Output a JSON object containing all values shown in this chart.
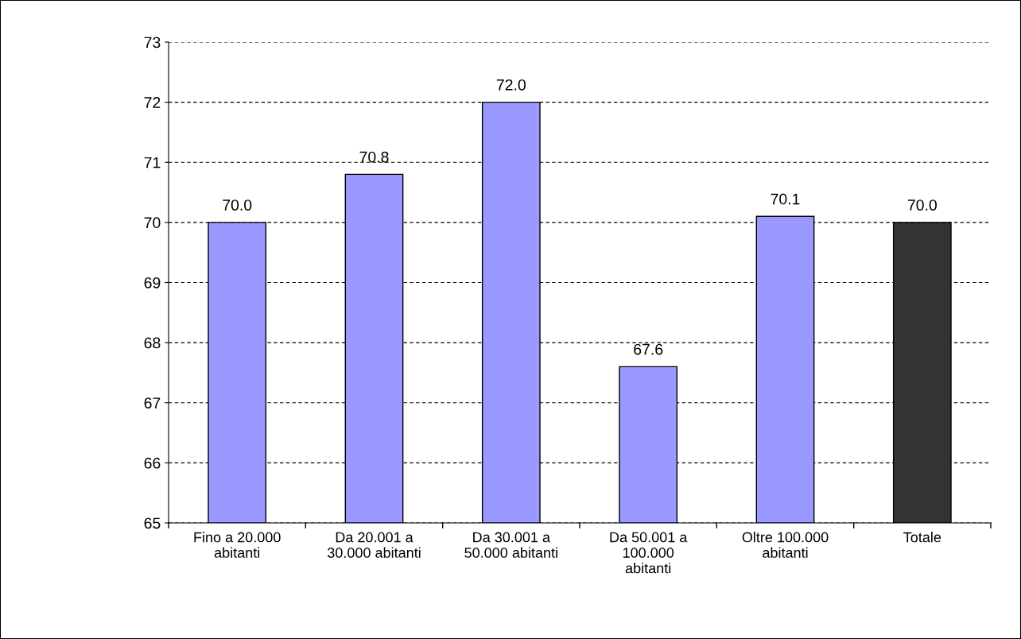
{
  "chart_data": {
    "type": "bar",
    "categories": [
      "Fino a 20.000\nabitanti",
      "Da 20.001 a\n30.000 abitanti",
      "Da 30.001 a\n50.000 abitanti",
      "Da 50.001 a\n100.000\nabitanti",
      "Oltre 100.000\nabitanti",
      "Totale"
    ],
    "values": [
      70.0,
      70.8,
      72.0,
      67.6,
      70.1,
      70.0
    ],
    "colors": [
      "#9999ff",
      "#9999ff",
      "#9999ff",
      "#9999ff",
      "#9999ff",
      "#333333"
    ],
    "ylim": [
      65,
      73
    ],
    "yticks": [
      65,
      66,
      67,
      68,
      69,
      70,
      71,
      72,
      73
    ],
    "value_labels": [
      "70.0",
      "70.8",
      "72.0",
      "67.6",
      "70.1",
      "70.0"
    ],
    "grid": "y"
  }
}
